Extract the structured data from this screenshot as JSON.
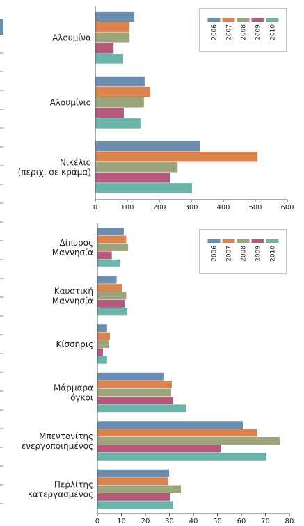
{
  "chart_data": [
    {
      "type": "bar",
      "orientation": "horizontal",
      "categories": [
        "Αλουμίνα",
        "Αλουμίνιο",
        "Νικέλιο\n(περιχ. σε κράμα)"
      ],
      "series": [
        {
          "name": "2006",
          "color": "#6b8db0",
          "values": [
            122,
            154,
            328
          ]
        },
        {
          "name": "2007",
          "color": "#d9844f",
          "values": [
            107,
            172,
            507
          ]
        },
        {
          "name": "2008",
          "color": "#9ca47b",
          "values": [
            107,
            152,
            257
          ]
        },
        {
          "name": "2009",
          "color": "#b4587c",
          "values": [
            57,
            89,
            233
          ]
        },
        {
          "name": "2010",
          "color": "#6cb4a9",
          "values": [
            87,
            141,
            302
          ]
        }
      ],
      "xlim": [
        0,
        600
      ],
      "xticks": [
        0,
        100,
        200,
        300,
        400,
        500,
        600
      ],
      "legend": "upper right"
    },
    {
      "type": "bar",
      "orientation": "horizontal",
      "categories": [
        "Δίπυρος\nΜαγνησία",
        "Καυστική\nΜαγνησία",
        "Κίσσηρις",
        "Μάρμαρα\nόγκοι",
        "Μπεντονίτης\nενεργοποιημένος",
        "Περλίτης\nκατεργασμένος"
      ],
      "series": [
        {
          "name": "2006",
          "color": "#6b8db0",
          "values": [
            11,
            8,
            4,
            27.8,
            60.6,
            29.9
          ]
        },
        {
          "name": "2007",
          "color": "#d9844f",
          "values": [
            12,
            10.4,
            5.2,
            31,
            66.7,
            29.6
          ]
        },
        {
          "name": "2008",
          "color": "#9ca47b",
          "values": [
            12.8,
            12,
            4.9,
            30.7,
            76,
            34.8
          ]
        },
        {
          "name": "2009",
          "color": "#b4587c",
          "values": [
            6,
            11.3,
            2.3,
            31.6,
            51.6,
            30.4
          ]
        },
        {
          "name": "2010",
          "color": "#6cb4a9",
          "values": [
            9.6,
            12.5,
            4,
            37,
            70.4,
            31.6
          ]
        }
      ],
      "xlim": [
        0,
        80
      ],
      "xticks": [
        0,
        10,
        20,
        30,
        40,
        50,
        60,
        70,
        80
      ],
      "legend": "upper right"
    }
  ]
}
